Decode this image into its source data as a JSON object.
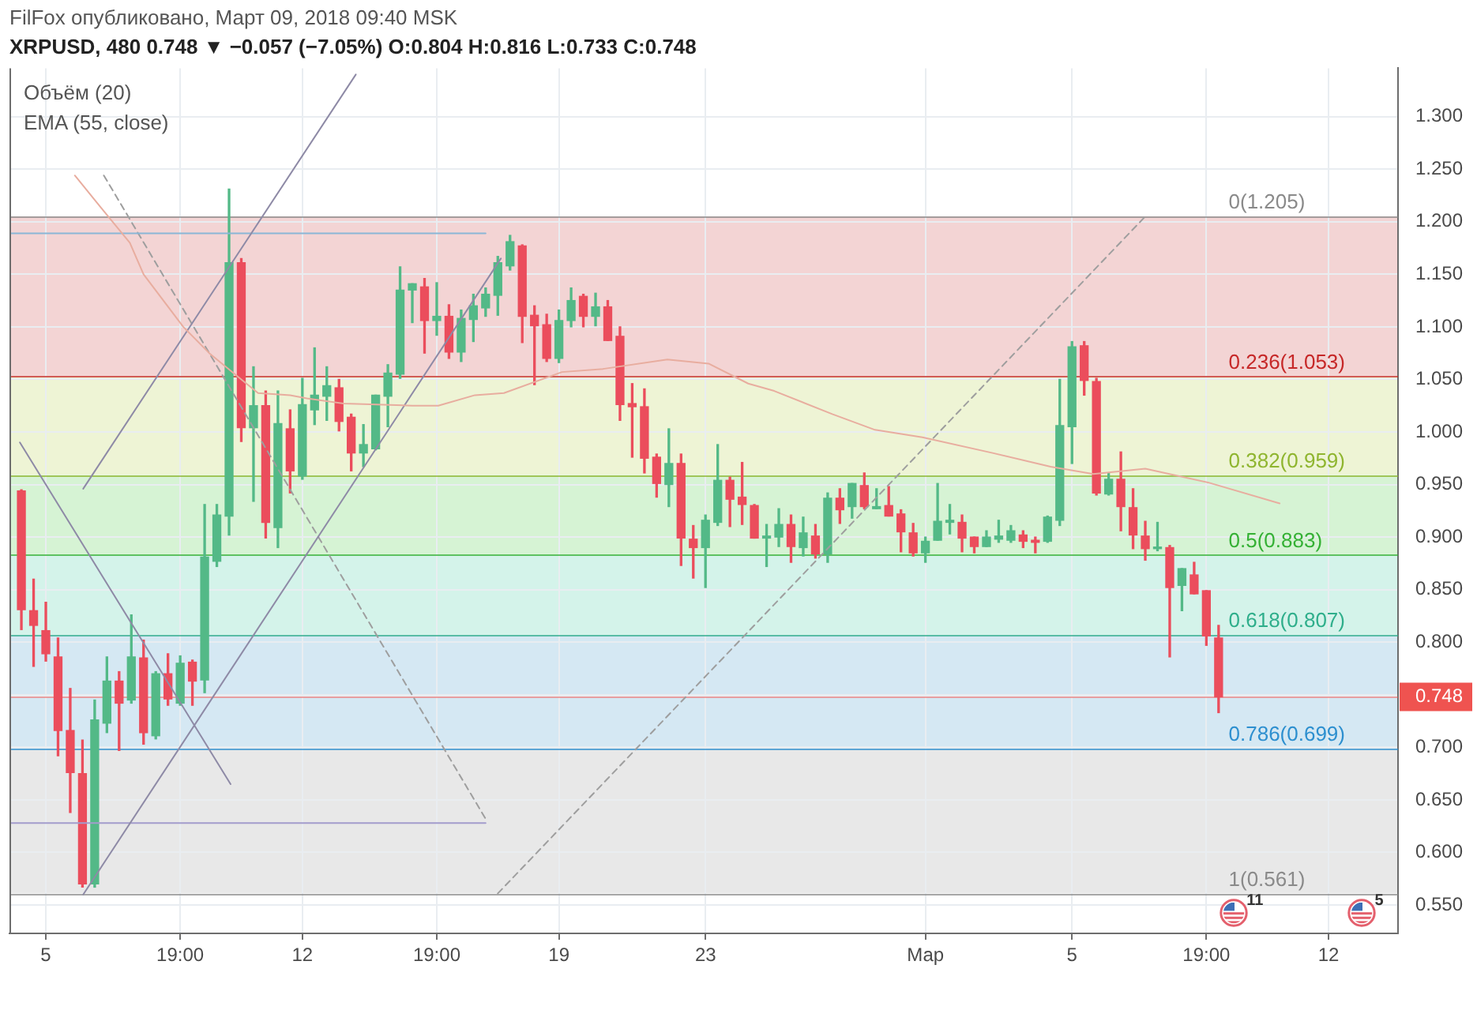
{
  "chart_data": {
    "type": "candlestick",
    "title": "FilFox опубликовано, Март 09, 2018 09:40 MSK",
    "subtitle": "XRPUSD, 480 0.748 ▼ −0.057 (−7.05%) O:0.804 H:0.816 L:0.733 C:0.748",
    "annotations": [
      "Объём (20)",
      "EMA (55, close)",
      {
        "text": "11",
        "x": "2018-03-09T13:00"
      },
      {
        "text": "5",
        "x": "2018-03-13T01:00"
      }
    ],
    "x": [
      "2018-02-04T11:00",
      "2018-02-04T19:00",
      "2018-02-05T03:00",
      "2018-02-05T11:00",
      "2018-02-05T19:00",
      "2018-02-06T03:00",
      "2018-02-06T11:00",
      "2018-02-06T19:00",
      "2018-02-07T03:00",
      "2018-02-07T11:00",
      "2018-02-07T19:00",
      "2018-02-08T03:00",
      "2018-02-08T11:00",
      "2018-02-08T19:00",
      "2018-02-09T03:00",
      "2018-02-09T11:00",
      "2018-02-09T19:00",
      "2018-02-10T03:00",
      "2018-02-10T11:00",
      "2018-02-10T19:00",
      "2018-02-11T03:00",
      "2018-02-11T11:00",
      "2018-02-11T19:00",
      "2018-02-12T03:00",
      "2018-02-12T11:00",
      "2018-02-12T19:00",
      "2018-02-13T03:00",
      "2018-02-13T11:00",
      "2018-02-13T19:00",
      "2018-02-14T03:00",
      "2018-02-14T11:00",
      "2018-02-14T19:00",
      "2018-02-15T03:00",
      "2018-02-15T11:00",
      "2018-02-15T19:00",
      "2018-02-16T03:00",
      "2018-02-16T11:00",
      "2018-02-16T19:00",
      "2018-02-17T03:00",
      "2018-02-17T11:00",
      "2018-02-17T19:00",
      "2018-02-18T03:00",
      "2018-02-18T11:00",
      "2018-02-18T19:00",
      "2018-02-19T03:00",
      "2018-02-19T11:00",
      "2018-02-19T19:00",
      "2018-02-20T03:00",
      "2018-02-20T11:00",
      "2018-02-20T19:00",
      "2018-02-21T03:00",
      "2018-02-21T11:00",
      "2018-02-21T19:00",
      "2018-02-22T03:00",
      "2018-02-22T11:00",
      "2018-02-22T19:00",
      "2018-02-23T03:00",
      "2018-02-23T11:00",
      "2018-02-23T19:00",
      "2018-02-24T03:00",
      "2018-02-24T11:00",
      "2018-02-24T19:00",
      "2018-02-25T03:00",
      "2018-02-25T11:00",
      "2018-02-25T19:00",
      "2018-02-26T03:00",
      "2018-02-26T11:00",
      "2018-02-26T19:00",
      "2018-02-27T03:00",
      "2018-02-27T11:00",
      "2018-02-27T19:00",
      "2018-02-28T03:00",
      "2018-02-28T11:00",
      "2018-02-28T19:00",
      "2018-03-01T03:00",
      "2018-03-01T11:00",
      "2018-03-01T19:00",
      "2018-03-02T03:00",
      "2018-03-02T11:00",
      "2018-03-02T19:00",
      "2018-03-03T03:00",
      "2018-03-03T11:00",
      "2018-03-03T19:00",
      "2018-03-04T03:00",
      "2018-03-04T11:00",
      "2018-03-04T19:00",
      "2018-03-05T03:00",
      "2018-03-05T11:00",
      "2018-03-05T19:00",
      "2018-03-06T03:00",
      "2018-03-06T11:00",
      "2018-03-06T19:00",
      "2018-03-07T03:00",
      "2018-03-07T11:00",
      "2018-03-07T19:00",
      "2018-03-08T03:00",
      "2018-03-08T11:00",
      "2018-03-08T19:00",
      "2018-03-09T03:00"
    ],
    "ohlc": [
      [
        0.944,
        0.945,
        0.812,
        0.831
      ],
      [
        0.83,
        0.86,
        0.777,
        0.816
      ],
      [
        0.811,
        0.838,
        0.782,
        0.789
      ],
      [
        0.786,
        0.804,
        0.692,
        0.716
      ],
      [
        0.716,
        0.756,
        0.638,
        0.676
      ],
      [
        0.675,
        0.707,
        0.567,
        0.57
      ],
      [
        0.57,
        0.745,
        0.567,
        0.726
      ],
      [
        0.723,
        0.786,
        0.714,
        0.763
      ],
      [
        0.763,
        0.772,
        0.697,
        0.742
      ],
      [
        0.745,
        0.826,
        0.742,
        0.786
      ],
      [
        0.785,
        0.802,
        0.703,
        0.714
      ],
      [
        0.711,
        0.772,
        0.708,
        0.77
      ],
      [
        0.77,
        0.789,
        0.74,
        0.746
      ],
      [
        0.742,
        0.787,
        0.74,
        0.78
      ],
      [
        0.781,
        0.783,
        0.74,
        0.763
      ],
      [
        0.764,
        0.931,
        0.752,
        0.881
      ],
      [
        0.877,
        0.931,
        0.872,
        0.921
      ],
      [
        0.92,
        1.231,
        0.902,
        1.161
      ],
      [
        1.161,
        1.165,
        0.991,
        1.004
      ],
      [
        1.004,
        1.062,
        0.934,
        1.025
      ],
      [
        1.025,
        1.039,
        0.899,
        0.914
      ],
      [
        0.909,
        1.039,
        0.89,
        1.008
      ],
      [
        1.003,
        1.021,
        0.942,
        0.963
      ],
      [
        0.958,
        1.051,
        0.955,
        1.026
      ],
      [
        1.021,
        1.08,
        1.007,
        1.035
      ],
      [
        1.034,
        1.062,
        1.011,
        1.044
      ],
      [
        1.042,
        1.05,
        1.001,
        1.01
      ],
      [
        1.014,
        1.017,
        0.963,
        0.98
      ],
      [
        0.98,
        1.007,
        0.967,
        0.988
      ],
      [
        0.984,
        1.035,
        0.983,
        1.035
      ],
      [
        1.034,
        1.064,
        1.005,
        1.056
      ],
      [
        1.055,
        1.157,
        1.051,
        1.135
      ],
      [
        1.135,
        1.141,
        1.104,
        1.141
      ],
      [
        1.138,
        1.146,
        1.075,
        1.106
      ],
      [
        1.106,
        1.142,
        1.092,
        1.11
      ],
      [
        1.11,
        1.121,
        1.07,
        1.076
      ],
      [
        1.076,
        1.116,
        1.067,
        1.108
      ],
      [
        1.107,
        1.131,
        1.086,
        1.12
      ],
      [
        1.118,
        1.137,
        1.11,
        1.131
      ],
      [
        1.13,
        1.167,
        1.111,
        1.161
      ],
      [
        1.158,
        1.187,
        1.154,
        1.181
      ],
      [
        1.177,
        1.178,
        1.085,
        1.11
      ],
      [
        1.111,
        1.12,
        1.045,
        1.101
      ],
      [
        1.102,
        1.112,
        1.067,
        1.07
      ],
      [
        1.07,
        1.116,
        1.066,
        1.106
      ],
      [
        1.106,
        1.137,
        1.1,
        1.125
      ],
      [
        1.129,
        1.131,
        1.1,
        1.11
      ],
      [
        1.11,
        1.132,
        1.101,
        1.119
      ],
      [
        1.119,
        1.125,
        1.087,
        1.087
      ],
      [
        1.091,
        1.1,
        1.011,
        1.026
      ],
      [
        1.027,
        1.046,
        0.976,
        1.024
      ],
      [
        1.024,
        1.041,
        0.961,
        0.975
      ],
      [
        0.976,
        0.979,
        0.938,
        0.951
      ],
      [
        0.95,
        1.003,
        0.929,
        0.97
      ],
      [
        0.97,
        0.979,
        0.873,
        0.899
      ],
      [
        0.898,
        0.911,
        0.861,
        0.89
      ],
      [
        0.89,
        0.921,
        0.852,
        0.916
      ],
      [
        0.914,
        0.988,
        0.911,
        0.954
      ],
      [
        0.954,
        0.957,
        0.91,
        0.936
      ],
      [
        0.938,
        0.971,
        0.912,
        0.931
      ],
      [
        0.93,
        0.931,
        0.899,
        0.899
      ],
      [
        0.899,
        0.912,
        0.872,
        0.901
      ],
      [
        0.9,
        0.927,
        0.891,
        0.912
      ],
      [
        0.912,
        0.921,
        0.876,
        0.891
      ],
      [
        0.89,
        0.919,
        0.882,
        0.904
      ],
      [
        0.901,
        0.912,
        0.88,
        0.884
      ],
      [
        0.884,
        0.942,
        0.876,
        0.937
      ],
      [
        0.937,
        0.946,
        0.913,
        0.926
      ],
      [
        0.929,
        0.951,
        0.918,
        0.951
      ],
      [
        0.949,
        0.961,
        0.927,
        0.929
      ],
      [
        0.927,
        0.946,
        0.927,
        0.929
      ],
      [
        0.93,
        0.948,
        0.92,
        0.92
      ],
      [
        0.922,
        0.926,
        0.886,
        0.905
      ],
      [
        0.904,
        0.913,
        0.882,
        0.885
      ],
      [
        0.885,
        0.9,
        0.876,
        0.896
      ],
      [
        0.897,
        0.951,
        0.897,
        0.915
      ],
      [
        0.914,
        0.931,
        0.903,
        0.916
      ],
      [
        0.914,
        0.921,
        0.886,
        0.899
      ],
      [
        0.9,
        0.9,
        0.885,
        0.891
      ],
      [
        0.891,
        0.906,
        0.891,
        0.9
      ],
      [
        0.898,
        0.916,
        0.895,
        0.901
      ],
      [
        0.897,
        0.911,
        0.895,
        0.906
      ],
      [
        0.902,
        0.906,
        0.89,
        0.896
      ],
      [
        0.897,
        0.9,
        0.885,
        0.895
      ],
      [
        0.896,
        0.92,
        0.895,
        0.919
      ],
      [
        0.916,
        1.05,
        0.911,
        1.006
      ],
      [
        1.005,
        1.086,
        0.97,
        1.081
      ],
      [
        1.082,
        1.086,
        1.035,
        1.049
      ],
      [
        1.048,
        1.051,
        0.94,
        0.942
      ],
      [
        0.941,
        0.961,
        0.94,
        0.955
      ],
      [
        0.955,
        0.981,
        0.906,
        0.929
      ],
      [
        0.928,
        0.946,
        0.889,
        0.902
      ],
      [
        0.901,
        0.915,
        0.878,
        0.889
      ],
      [
        0.889,
        0.914,
        0.887,
        0.889
      ],
      [
        0.89,
        0.892,
        0.786,
        0.852
      ],
      [
        0.854,
        0.87,
        0.83,
        0.87
      ],
      [
        0.864,
        0.876,
        0.846,
        0.846
      ],
      [
        0.849,
        0.849,
        0.797,
        0.806
      ],
      [
        0.804,
        0.816,
        0.733,
        0.748
      ]
    ],
    "colors": [
      "#eb4d5c",
      "#eb4d5c",
      "#eb4d5c",
      "#eb4d5c",
      "#eb4d5c",
      "#eb4d5c",
      "#53b987",
      "#53b987",
      "#eb4d5c",
      "#53b987",
      "#eb4d5c",
      "#53b987",
      "#eb4d5c",
      "#53b987",
      "#eb4d5c",
      "#53b987",
      "#53b987",
      "#53b987",
      "#eb4d5c",
      "#53b987",
      "#eb4d5c",
      "#53b987",
      "#eb4d5c",
      "#53b987",
      "#53b987",
      "#53b987",
      "#eb4d5c",
      "#eb4d5c",
      "#53b987",
      "#53b987",
      "#53b987",
      "#53b987",
      "#53b987",
      "#eb4d5c",
      "#53b987",
      "#eb4d5c",
      "#53b987",
      "#53b987",
      "#53b987",
      "#53b987",
      "#53b987",
      "#eb4d5c",
      "#eb4d5c",
      "#eb4d5c",
      "#53b987",
      "#53b987",
      "#eb4d5c",
      "#53b987",
      "#eb4d5c",
      "#eb4d5c",
      "#eb4d5c",
      "#eb4d5c",
      "#eb4d5c",
      "#53b987",
      "#eb4d5c",
      "#eb4d5c",
      "#53b987",
      "#53b987",
      "#eb4d5c",
      "#eb4d5c",
      "#eb4d5c",
      "#53b987",
      "#53b987",
      "#eb4d5c",
      "#53b987",
      "#eb4d5c",
      "#53b987",
      "#eb4d5c",
      "#53b987",
      "#eb4d5c",
      "#53b987",
      "#eb4d5c",
      "#eb4d5c",
      "#eb4d5c",
      "#53b987",
      "#53b987",
      "#53b987",
      "#eb4d5c",
      "#eb4d5c",
      "#53b987",
      "#53b987",
      "#53b987",
      "#eb4d5c",
      "#eb4d5c",
      "#53b987",
      "#53b987",
      "#53b987",
      "#eb4d5c",
      "#eb4d5c",
      "#53b987",
      "#eb4d5c",
      "#eb4d5c",
      "#eb4d5c",
      "#53b987",
      "#eb4d5c",
      "#53b987",
      "#eb4d5c",
      "#eb4d5c",
      "#eb4d5c"
    ],
    "xlim": [
      "2018-02-04T03:12",
      "2018-03-14T00:30"
    ],
    "xticks": [
      {
        "value": "2018-02-05T03:00",
        "label": "5"
      },
      {
        "value": "2018-02-08T19:00",
        "label": "19:00"
      },
      {
        "value": "2018-02-12T03:00",
        "label": "12"
      },
      {
        "value": "2018-02-15T19:00",
        "label": "19:00"
      },
      {
        "value": "2018-02-19T03:00",
        "label": "19"
      },
      {
        "value": "2018-02-23T03:00",
        "label": "23"
      },
      {
        "value": "2018-03-01T03:00",
        "label": "Мар"
      },
      {
        "value": "2018-03-05T03:00",
        "label": "5"
      },
      {
        "value": "2018-03-08T19:00",
        "label": "19:00"
      },
      {
        "value": "2018-03-12T03:00",
        "label": "12"
      }
    ],
    "ylim": [
      0.523,
      1.346
    ],
    "yticks": [
      {
        "value": 0.55,
        "label": "0.550"
      },
      {
        "value": 0.6,
        "label": "0.600"
      },
      {
        "value": 0.65,
        "label": "0.650"
      },
      {
        "value": 0.7,
        "label": "0.700"
      },
      {
        "value": 0.748,
        "label": "0.748"
      },
      {
        "value": 0.75,
        "label": null
      },
      {
        "value": 0.8,
        "label": "0.800"
      },
      {
        "value": 0.85,
        "label": "0.850"
      },
      {
        "value": 0.9,
        "label": "0.900"
      },
      {
        "value": 0.95,
        "label": "0.950"
      },
      {
        "value": 1,
        "label": "1.000"
      },
      {
        "value": 1.05,
        "label": "1.050"
      },
      {
        "value": 1.1,
        "label": "1.100"
      },
      {
        "value": 1.15,
        "label": "1.150"
      },
      {
        "value": 1.2,
        "label": "1.200"
      },
      {
        "value": 1.25,
        "label": "1.250"
      },
      {
        "value": 1.3,
        "label": "1.300"
      }
    ],
    "grid": true,
    "bands": [
      {
        "axis": "y",
        "from": 1.053,
        "to": 1.205,
        "color": "#f3d4d4"
      },
      {
        "axis": "y",
        "from": 0.959,
        "to": 1.053,
        "color": "#eef4d5"
      },
      {
        "axis": "y",
        "from": 0.883,
        "to": 0.959,
        "color": "#d6f3d4"
      },
      {
        "axis": "y",
        "from": 0.807,
        "to": 0.883,
        "color": "#d4f3ea"
      },
      {
        "axis": "y",
        "from": 0.699,
        "to": 0.807,
        "color": "#d5e8f3"
      },
      {
        "axis": "y",
        "from": 0.561,
        "to": 0.699,
        "color": "#e8e8e8"
      }
    ],
    "ref_lines": [
      {
        "axis": "y",
        "value": 1.205,
        "label": "0(1.205)",
        "color": "#8a8a8a"
      },
      {
        "axis": "y",
        "value": 1.053,
        "label": "0.236(1.053)",
        "color": "#c62828"
      },
      {
        "axis": "y",
        "value": 0.959,
        "label": "0.382(0.959)",
        "color": "#8fb52f"
      },
      {
        "axis": "y",
        "value": 0.883,
        "label": "0.5(0.883)",
        "color": "#34b034"
      },
      {
        "axis": "y",
        "value": 0.807,
        "label": "0.618(0.807)",
        "color": "#2fae8b"
      },
      {
        "axis": "y",
        "value": 0.699,
        "label": "0.786(0.699)",
        "color": "#2d8fcf"
      },
      {
        "axis": "y",
        "value": 0.561,
        "label": "1(0.561)",
        "color": "#8a8a8a"
      },
      {
        "axis": "y",
        "value": 0.748,
        "color": "#ef5350"
      }
    ],
    "series": [
      {
        "type": "line",
        "color": "#e8ad9f",
        "x": [
          "2018-02-05T22:00",
          "2018-02-06T17:00",
          "2018-02-07T10:00",
          "2018-02-07T19:00",
          "2018-02-08T21:00",
          "2018-02-09T14:00",
          "2018-02-10T11:00",
          "2018-02-10T22:00",
          "2018-02-11T19:00",
          "2018-02-12T06:00",
          "2018-02-13T06:00",
          "2018-02-15T03:00",
          "2018-02-15T20:00",
          "2018-02-16T20:00",
          "2018-02-17T15:00",
          "2018-02-19T05:00",
          "2018-02-20T08:00",
          "2018-02-22T02:00",
          "2018-02-23T05:00",
          "2018-02-24T07:00",
          "2018-02-25T00:00",
          "2018-02-26T14:00",
          "2018-02-27T18:00",
          "2018-03-01T01:00",
          "2018-03-02T23:00",
          "2018-03-04T13:00",
          "2018-03-05T17:00",
          "2018-03-07T03:00",
          "2018-03-08T20:00",
          "2018-03-10T19:00"
        ],
        "values": [
          1.244,
          1.21,
          1.18,
          1.15,
          1.1,
          1.075,
          1.05,
          1.037,
          1.035,
          1.032,
          1.027,
          1.025,
          1.025,
          1.035,
          1.037,
          1.057,
          1.06,
          1.069,
          1.065,
          1.046,
          1.039,
          1.017,
          1.002,
          0.995,
          0.98,
          0.967,
          0.96,
          0.965,
          0.952,
          0.932
        ]
      },
      {
        "type": "line",
        "color": "#8e8aa6",
        "x": [
          "2018-02-06T03:30",
          "2018-02-13T14:00"
        ],
        "values": [
          0.946,
          1.34
        ]
      },
      {
        "type": "line",
        "color": "#8e8aa6",
        "x": [
          "2018-02-06T03:30",
          "2018-02-17T13:00"
        ],
        "values": [
          0.56,
          1.165
        ]
      },
      {
        "type": "line",
        "color": "#8e8aa6",
        "x": [
          "2018-02-04T10:00",
          "2018-02-10T04:00"
        ],
        "values": [
          0.99,
          0.665
        ]
      },
      {
        "type": "line",
        "color": "#8ab6d6",
        "x": [
          "2018-02-04T03:12",
          "2018-02-17T03:00"
        ],
        "values": [
          1.189,
          1.189
        ]
      },
      {
        "type": "line",
        "color": "#a39ccc",
        "x": [
          "2018-02-04T03:12",
          "2018-02-17T03:00"
        ],
        "values": [
          0.628,
          0.628
        ]
      },
      {
        "type": "line",
        "color": "#9e9e9e",
        "line_style": "dashed",
        "x": [
          "2018-02-06T17:00",
          "2018-02-17T03:00"
        ],
        "values": [
          1.244,
          0.632
        ]
      },
      {
        "type": "line",
        "color": "#9e9e9e",
        "line_style": "dashed",
        "x": [
          "2018-02-17T11:00",
          "2018-03-07T03:00"
        ],
        "values": [
          0.561,
          1.205
        ]
      }
    ]
  }
}
